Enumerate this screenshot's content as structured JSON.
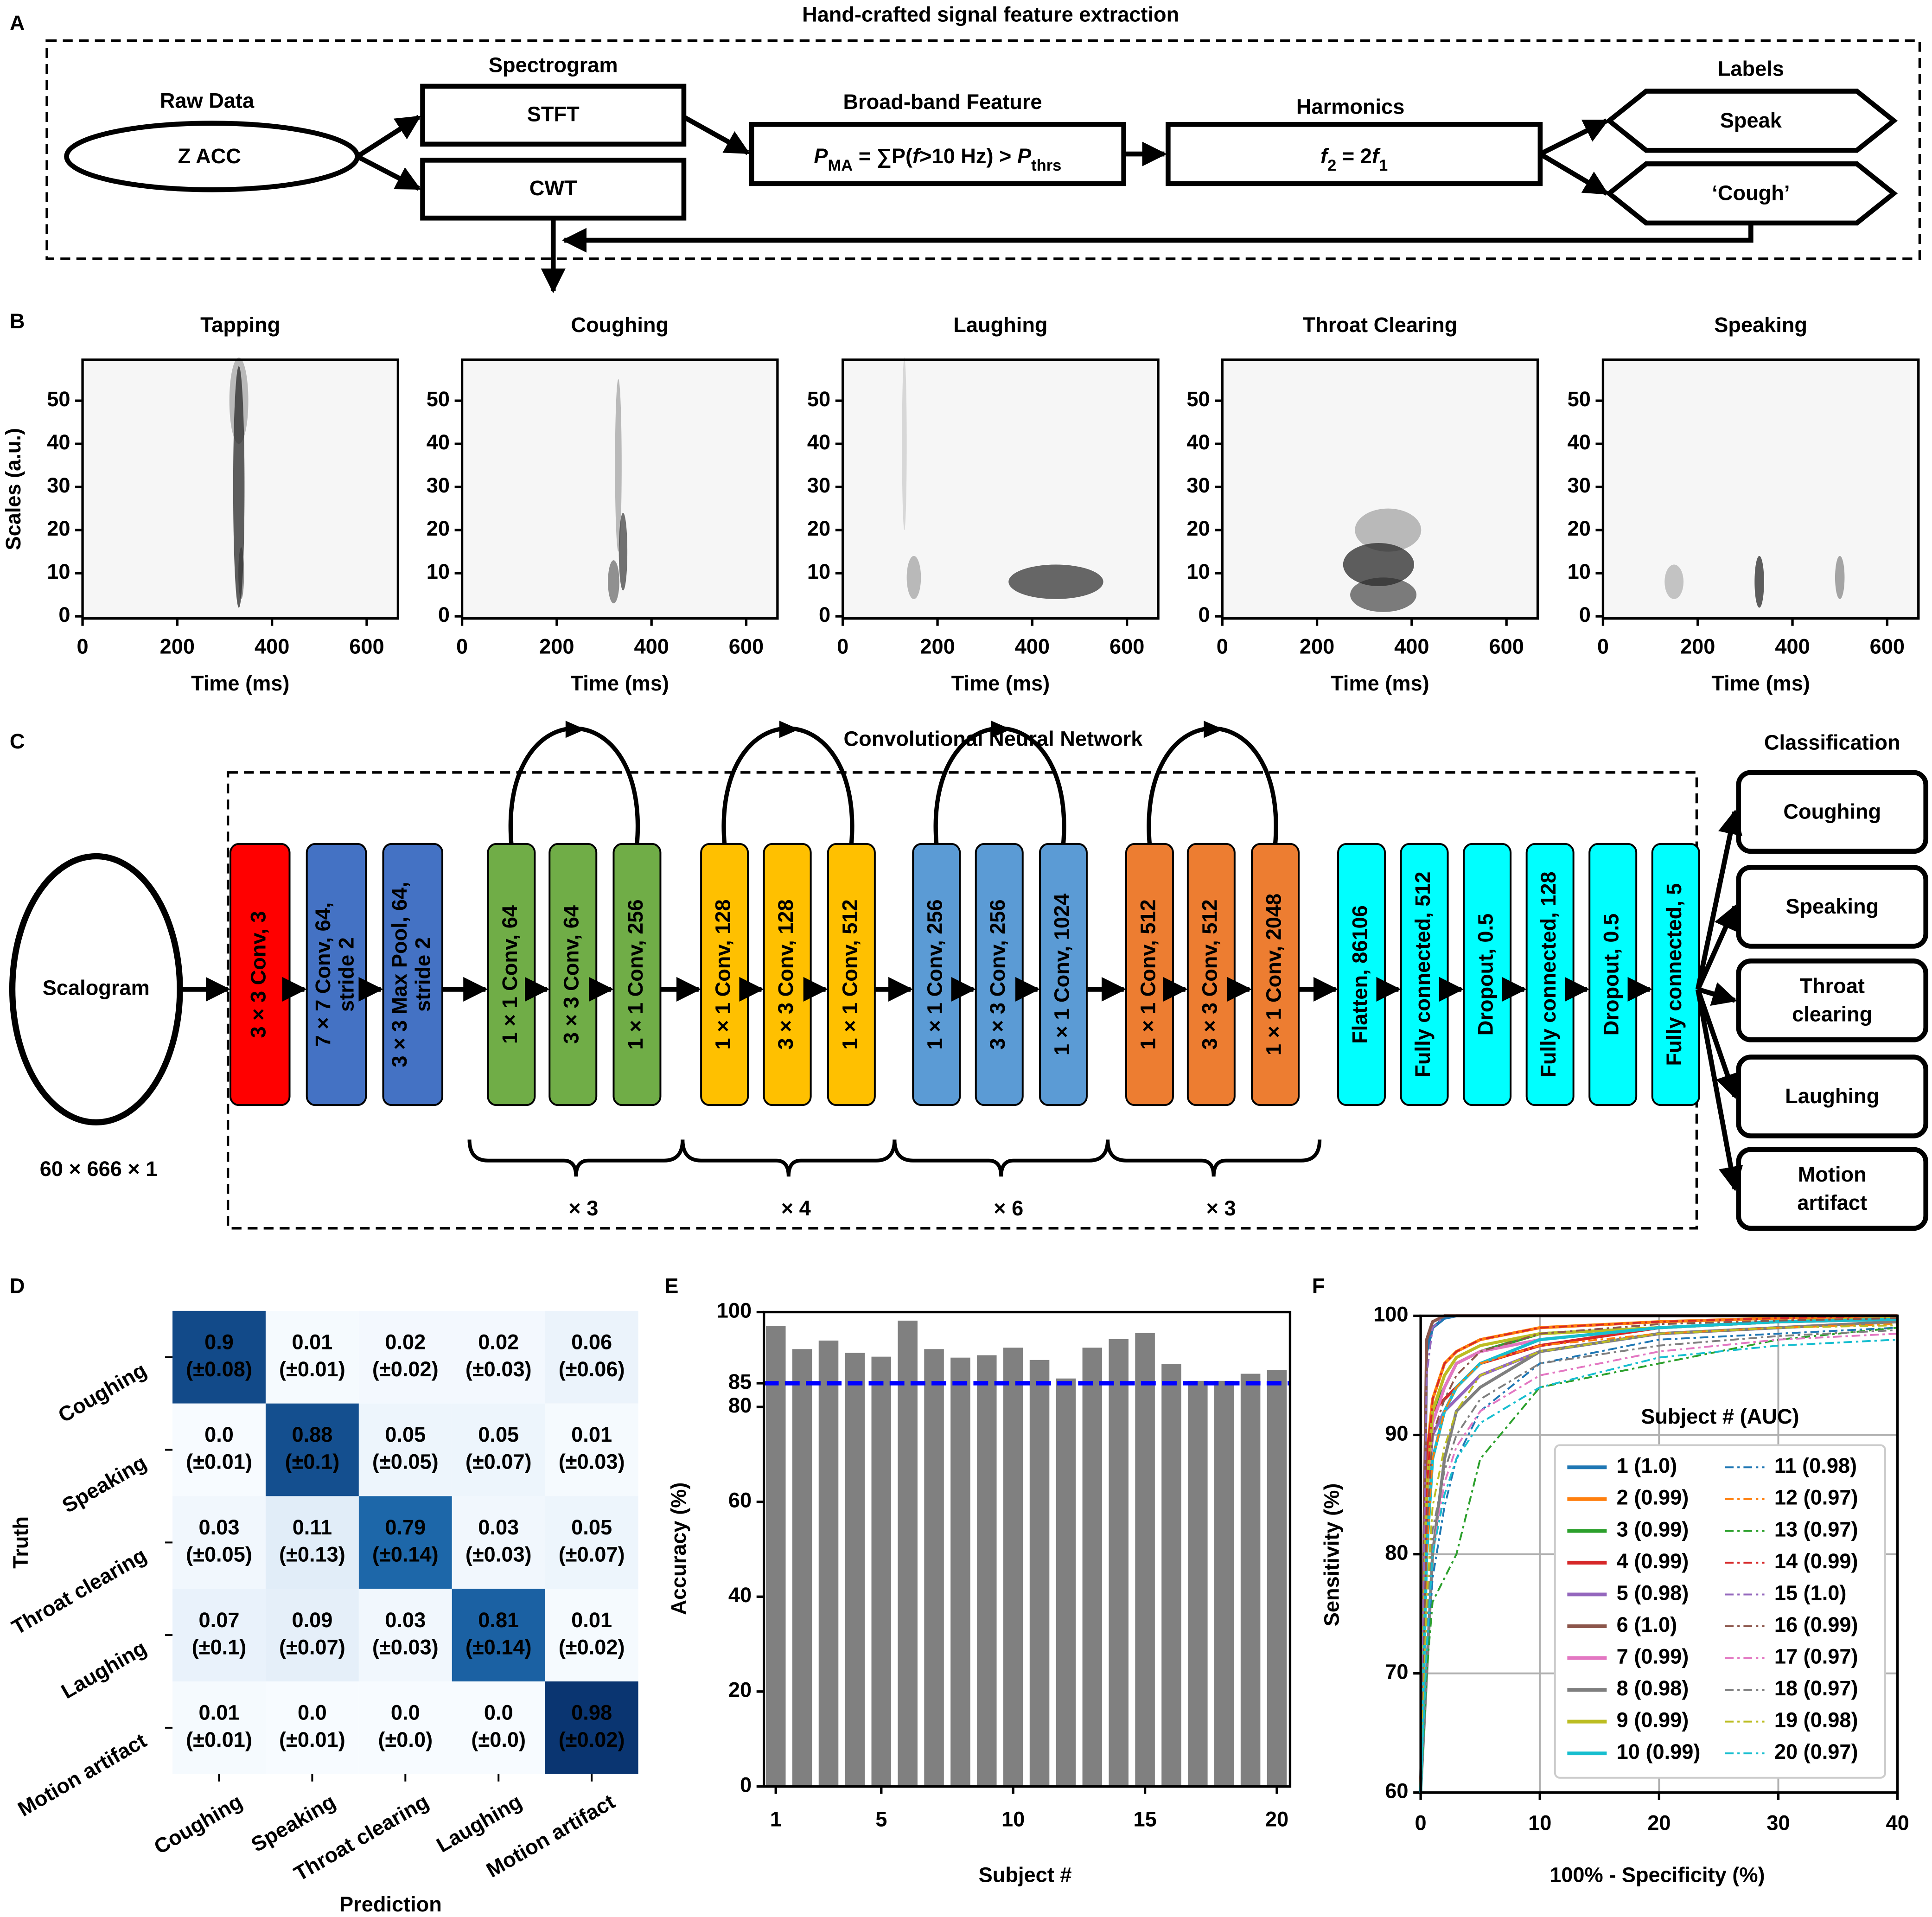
{
  "panel_labels": [
    "A",
    "B",
    "C",
    "D",
    "E",
    "F"
  ],
  "feature_extraction": {
    "title": "Hand-crafted signal feature extraction",
    "raw": {
      "label": "Raw Data",
      "node": "Z ACC"
    },
    "spectrogram": {
      "label": "Spectrogram",
      "nodes": [
        "STFT",
        "CWT"
      ]
    },
    "broadband": {
      "label": "Broad-band Feature",
      "formula": [
        "P",
        "MA",
        " = ∑P(",
        "f",
        ">10 Hz) > ",
        "P",
        "thrs"
      ]
    },
    "harmonics": {
      "label": "Harmonics",
      "formula": [
        "f",
        "2",
        " = 2",
        "f",
        "1"
      ]
    },
    "labels": {
      "label": "Labels",
      "nodes": [
        "Speak",
        "‘Cough’"
      ]
    }
  },
  "scalograms": {
    "titles": [
      "Tapping",
      "Coughing",
      "Laughing",
      "Throat Clearing",
      "Speaking"
    ],
    "colors": [
      "#8c564b",
      "#ff7f0e",
      "#7030a0",
      "#c00000",
      "#4e8a2e"
    ],
    "ylabel": "Scales (a.u.)",
    "xlabel": "Time (ms)",
    "xlim": [
      0,
      666
    ],
    "ylim": [
      59.5,
      -0.5
    ],
    "xticks": [
      0,
      200,
      400,
      600
    ],
    "yticks": [
      0,
      10,
      20,
      30,
      40,
      50
    ]
  },
  "cnn": {
    "title": "Convolutional Neural Network",
    "input": "Scalogram",
    "input_shape": "60 × 666 × 1",
    "layers": [
      {
        "lines": [
          "3 × 3 Conv, 3"
        ],
        "color": "#ff0000"
      },
      {
        "lines": [
          "7 × 7 Conv, 64,",
          "stride 2"
        ],
        "color": "#4472c4"
      },
      {
        "lines": [
          "3 × 3 Max Pool, 64,",
          "stride 2"
        ],
        "color": "#4472c4"
      },
      {
        "lines": [
          "1 × 1 Conv, 64"
        ],
        "color": "#70ad47"
      },
      {
        "lines": [
          "3 × 3 Conv, 64"
        ],
        "color": "#70ad47"
      },
      {
        "lines": [
          "1 × 1 Conv, 256"
        ],
        "color": "#70ad47"
      },
      {
        "lines": [
          "1 × 1 Conv, 128"
        ],
        "color": "#ffc000"
      },
      {
        "lines": [
          "3 × 3 Conv, 128"
        ],
        "color": "#ffc000"
      },
      {
        "lines": [
          "1 × 1 Conv, 512"
        ],
        "color": "#ffc000"
      },
      {
        "lines": [
          "1 × 1 Conv, 256"
        ],
        "color": "#5b9bd5"
      },
      {
        "lines": [
          "3 × 3 Conv, 256"
        ],
        "color": "#5b9bd5"
      },
      {
        "lines": [
          "1 × 1 Conv, 1024"
        ],
        "color": "#5b9bd5"
      },
      {
        "lines": [
          "1 × 1 Conv, 512"
        ],
        "color": "#ed7d31"
      },
      {
        "lines": [
          "3 × 3 Conv, 512"
        ],
        "color": "#ed7d31"
      },
      {
        "lines": [
          "1 × 1 Conv, 2048"
        ],
        "color": "#ed7d31"
      },
      {
        "lines": [
          "Flatten, 86106"
        ],
        "color": "#00ffff"
      },
      {
        "lines": [
          "Fully connected, 512"
        ],
        "color": "#00ffff"
      },
      {
        "lines": [
          "Dropout, 0.5"
        ],
        "color": "#00ffff"
      },
      {
        "lines": [
          "Fully connected, 128"
        ],
        "color": "#00ffff"
      },
      {
        "lines": [
          "Dropout, 0.5"
        ],
        "color": "#00ffff"
      },
      {
        "lines": [
          "Fully connected, 5"
        ],
        "color": "#00ffff"
      }
    ],
    "repeats": [
      "× 3",
      "× 4",
      "× 6",
      "× 3"
    ],
    "classification_title": "Classification",
    "classes": [
      [
        "Coughing"
      ],
      [
        "Speaking"
      ],
      [
        "Throat",
        "clearing"
      ],
      [
        "Laughing"
      ],
      [
        "Motion",
        "artifact"
      ]
    ]
  },
  "chart_data": [
    {
      "type": "heatmap",
      "rows": [
        "Coughing",
        "Speaking",
        "Throat clearing",
        "Laughing",
        "Motion artifact"
      ],
      "columns": [
        "Coughing",
        "Speaking",
        "Throat clearing",
        "Laughing",
        "Motion artifact"
      ],
      "values": [
        [
          0.9,
          0.01,
          0.02,
          0.02,
          0.06
        ],
        [
          0,
          0.88,
          0.05,
          0.05,
          0.01
        ],
        [
          0.03,
          0.11,
          0.79,
          0.03,
          0.05
        ],
        [
          0.07,
          0.09,
          0.03,
          0.81,
          0.01
        ],
        [
          0.01,
          0,
          0,
          0,
          0.98
        ]
      ],
      "value_labels": [
        [
          "0.9",
          "0.01",
          "0.02",
          "0.02",
          "0.06"
        ],
        [
          "0.0",
          "0.88",
          "0.05",
          "0.05",
          "0.01"
        ],
        [
          "0.03",
          "0.11",
          "0.79",
          "0.03",
          "0.05"
        ],
        [
          "0.07",
          "0.09",
          "0.03",
          "0.81",
          "0.01"
        ],
        [
          "0.01",
          "0.0",
          "0.0",
          "0.0",
          "0.98"
        ]
      ],
      "errors": [
        [
          0.08,
          0.01,
          0.02,
          0.03,
          0.06
        ],
        [
          0.01,
          0.1,
          0.05,
          0.07,
          0.03
        ],
        [
          0.05,
          0.13,
          0.14,
          0.03,
          0.07
        ],
        [
          0.1,
          0.07,
          0.03,
          0.14,
          0.02
        ],
        [
          0.01,
          0.01,
          0,
          0,
          0.02
        ]
      ],
      "error_labels": [
        [
          "(±0.08)",
          "(±0.01)",
          "(±0.02)",
          "(±0.03)",
          "(±0.06)"
        ],
        [
          "(±0.01)",
          "(±0.1)",
          "(±0.05)",
          "(±0.07)",
          "(±0.03)"
        ],
        [
          "(±0.05)",
          "(±0.13)",
          "(±0.14)",
          "(±0.03)",
          "(±0.07)"
        ],
        [
          "(±0.1)",
          "(±0.07)",
          "(±0.03)",
          "(±0.14)",
          "(±0.02)"
        ],
        [
          "(±0.01)",
          "(±0.01)",
          "(±0.0)",
          "(±0.0)",
          "(±0.02)"
        ]
      ],
      "xlabel": "Prediction",
      "ylabel": "Truth",
      "colormap": "Blues"
    },
    {
      "type": "bar",
      "x": [
        1,
        2,
        3,
        4,
        5,
        6,
        7,
        8,
        9,
        10,
        11,
        12,
        13,
        14,
        15,
        16,
        17,
        18,
        19,
        20
      ],
      "values": [
        97.1,
        92.2,
        94,
        91.4,
        90.6,
        98.2,
        92.2,
        90.4,
        90.9,
        92.5,
        89.9,
        86,
        92.5,
        94.3,
        95.6,
        89.1,
        85.5,
        85.5,
        87,
        87.8
      ],
      "color": "#808080",
      "xlabel": "Subject #",
      "ylabel": "Accuracy (%)",
      "xlim": [
        0.55,
        20.5
      ],
      "ylim": [
        0,
        100
      ],
      "xticks": [
        1,
        5,
        10,
        15,
        20
      ],
      "yticks": [
        0,
        20,
        40,
        60,
        80,
        85,
        100
      ],
      "reference_line": {
        "value": 85,
        "color": "#0000ff"
      }
    },
    {
      "type": "line",
      "x": [
        0,
        0.5,
        1,
        2,
        3,
        5,
        10,
        20,
        30,
        40
      ],
      "series": [
        {
          "name": "1 (1.0)",
          "color": "#1f77b4",
          "linestyle": "solid",
          "values": [
            60,
            97,
            99,
            99.8,
            100,
            100,
            100,
            100,
            100,
            100
          ]
        },
        {
          "name": "2 (0.99)",
          "color": "#ff7f0e",
          "linestyle": "solid",
          "values": [
            60,
            88,
            93,
            96,
            97,
            98,
            99,
            99.5,
            99.8,
            100
          ]
        },
        {
          "name": "3 (0.99)",
          "color": "#2ca02c",
          "linestyle": "solid",
          "values": [
            60,
            85,
            92,
            94,
            96,
            97,
            98.5,
            99,
            99.5,
            99.7
          ]
        },
        {
          "name": "4 (0.99)",
          "color": "#d62728",
          "linestyle": "solid",
          "values": [
            60,
            88,
            92,
            93,
            94,
            96,
            97.5,
            99,
            99.5,
            99.7
          ]
        },
        {
          "name": "5 (0.98)",
          "color": "#9467bd",
          "linestyle": "solid",
          "values": [
            60,
            85,
            90,
            92,
            93,
            95,
            97,
            98.5,
            99,
            99.5
          ]
        },
        {
          "name": "6 (1.0)",
          "color": "#8c564b",
          "linestyle": "solid",
          "values": [
            60,
            98,
            99.5,
            100,
            100,
            100,
            100,
            100,
            100,
            100
          ]
        },
        {
          "name": "7 (0.99)",
          "color": "#e377c2",
          "linestyle": "solid",
          "values": [
            60,
            85,
            91,
            94,
            96,
            97,
            98,
            99,
            99.5,
            99.8
          ]
        },
        {
          "name": "8 (0.98)",
          "color": "#7f7f7f",
          "linestyle": "solid",
          "values": [
            60,
            70,
            80,
            88,
            92,
            94,
            97,
            98.5,
            99,
            99.5
          ]
        },
        {
          "name": "9 (0.99)",
          "color": "#bcbd22",
          "linestyle": "solid",
          "values": [
            60,
            85,
            92,
            95,
            96.5,
            97.5,
            98.5,
            99,
            99.5,
            99.8
          ]
        },
        {
          "name": "10 (0.99)",
          "color": "#17becf",
          "linestyle": "solid",
          "values": [
            60,
            80,
            88,
            92,
            94,
            96,
            98,
            99,
            99.5,
            99.7
          ]
        },
        {
          "name": "11 (0.98)",
          "color": "#1f77b4",
          "linestyle": "dashdot",
          "values": [
            60,
            70,
            78,
            84,
            88,
            92,
            96,
            98,
            98.5,
            99
          ]
        },
        {
          "name": "12 (0.97)",
          "color": "#ff7f0e",
          "linestyle": "dashdot",
          "values": [
            60,
            80,
            88,
            92,
            94,
            96,
            97.5,
            98.5,
            99,
            99.3
          ]
        },
        {
          "name": "13 (0.97)",
          "color": "#2ca02c",
          "linestyle": "dashdot",
          "values": [
            60,
            70,
            76,
            78,
            80,
            88,
            94,
            96,
            98,
            99
          ]
        },
        {
          "name": "14 (0.99)",
          "color": "#d62728",
          "linestyle": "dashdot",
          "values": [
            60,
            85,
            93,
            96,
            97,
            98,
            99,
            99.5,
            99.8,
            100
          ]
        },
        {
          "name": "15 (1.0)",
          "color": "#9467bd",
          "linestyle": "dashdot",
          "values": [
            60,
            95,
            99,
            100,
            100,
            100,
            100,
            100,
            100,
            100
          ]
        },
        {
          "name": "16 (0.99)",
          "color": "#8c564b",
          "linestyle": "dashdot",
          "values": [
            60,
            82,
            90,
            93,
            95,
            97,
            98.5,
            99.3,
            99.6,
            99.8
          ]
        },
        {
          "name": "17 (0.97)",
          "color": "#e377c2",
          "linestyle": "dashdot",
          "values": [
            60,
            72,
            80,
            86,
            89,
            92,
            95,
            97,
            98,
            98.5
          ]
        },
        {
          "name": "18 (0.97)",
          "color": "#7f7f7f",
          "linestyle": "dashdot",
          "values": [
            60,
            74,
            82,
            87,
            90,
            93,
            96,
            97.5,
            98.3,
            98.8
          ]
        },
        {
          "name": "19 (0.98)",
          "color": "#bcbd22",
          "linestyle": "dashdot",
          "values": [
            60,
            76,
            84,
            89,
            92,
            95,
            97,
            98.5,
            99,
            99.2
          ]
        },
        {
          "name": "20 (0.97)",
          "color": "#17becf",
          "linestyle": "dashdot",
          "values": [
            60,
            72,
            80,
            85,
            88,
            91,
            94,
            96.5,
            97.5,
            98
          ]
        }
      ],
      "legend_title": "Subject # (AUC)",
      "legend": "lower right",
      "xlabel": "100% - Specificity (%)",
      "ylabel": "Sensitivity (%)",
      "xlim": [
        0,
        40
      ],
      "ylim": [
        60,
        100
      ],
      "xticks": [
        0,
        10,
        20,
        30,
        40
      ],
      "yticks": [
        60,
        70,
        80,
        90,
        100
      ],
      "grid": true
    }
  ]
}
